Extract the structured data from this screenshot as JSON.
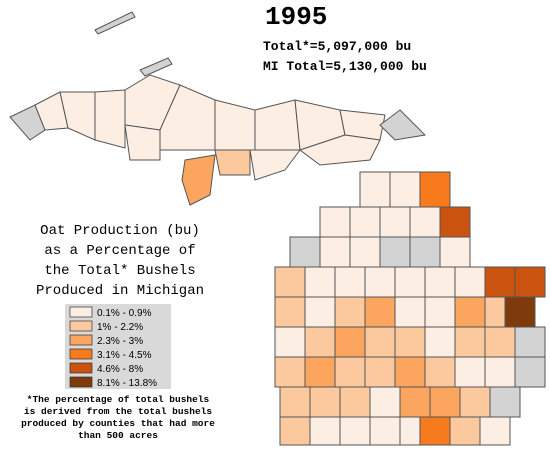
{
  "title": "1995",
  "totals": [
    "Total*=5,097,000 bu",
    "MI Total=5,130,000 bu"
  ],
  "map_title": [
    "Oat Production (bu)",
    "as a Percentage of",
    "the Total* Bushels",
    "Produced in Michigan"
  ],
  "legend": [
    {
      "label": "0.1% - 0.9%",
      "color": "#fdeee4"
    },
    {
      "label": "1% - 2.2%",
      "color": "#fcc99e"
    },
    {
      "label": "2.3% - 3%",
      "color": "#fba55e"
    },
    {
      "label": "3.1% - 4.5%",
      "color": "#f77b1c"
    },
    {
      "label": "4.6% - 8%",
      "color": "#c9530f"
    },
    {
      "label": "8.1% - 13.8%",
      "color": "#7f3a0b"
    }
  ],
  "footnote": [
    "*The percentage of total bushels",
    "is derived from the total bushels",
    "produced by counties that had more",
    "than 500 acres"
  ]
}
